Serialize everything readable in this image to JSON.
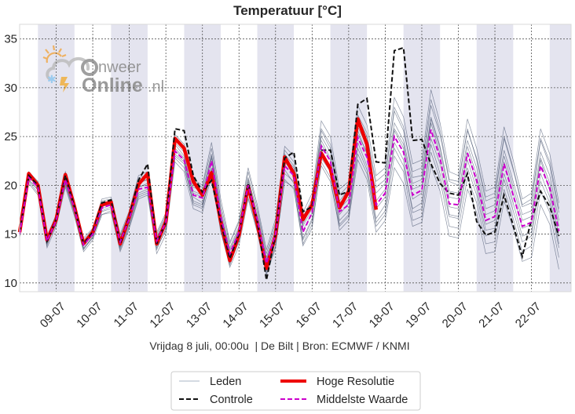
{
  "chart_data": {
    "type": "line",
    "title": "Temperatuur [°C]",
    "subtitle": "Vrijdag 8 juli, 00:00u  | De Bilt | Bron: ECMWF / KNMI",
    "xlabel": "",
    "ylabel": "",
    "ylim": [
      9.1,
      36.5
    ],
    "yticks": [
      10,
      15,
      20,
      25,
      30,
      35
    ],
    "ytick_labels": [
      "10",
      "15",
      "20",
      "25",
      "30",
      "35"
    ],
    "x_unit": "hours since 08-07 00:00",
    "xlim": [
      0,
      362
    ],
    "xticks": [
      24,
      48,
      72,
      96,
      120,
      144,
      168,
      192,
      216,
      240,
      264,
      288,
      312,
      336
    ],
    "xtick_labels": [
      "09-07",
      "10-07",
      "11-07",
      "12-07",
      "13-07",
      "14-07",
      "15-07",
      "16-07",
      "17-07",
      "18-07",
      "19-07",
      "20-07",
      "21-07",
      "22-07"
    ],
    "night_bands": [
      [
        12,
        36
      ],
      [
        60,
        84
      ],
      [
        108,
        132
      ],
      [
        156,
        180
      ],
      [
        204,
        228
      ],
      [
        252,
        276
      ],
      [
        300,
        324
      ],
      [
        348,
        362
      ]
    ],
    "grid": true,
    "legend": {
      "placement": "bottom-center",
      "entries": [
        {
          "label": "Leden",
          "style": "thin-gray"
        },
        {
          "label": "Hoge Resolutie",
          "style": "thick-red"
        },
        {
          "label": "Controle",
          "style": "dashed-black"
        },
        {
          "label": "Middelste Waarde",
          "style": "dashed-magenta"
        }
      ]
    },
    "colors": {
      "members": "#2b3a5a",
      "hires": "#ee0000",
      "control": "#111111",
      "median": "#cc00cc",
      "band": "#e4e4ef",
      "grid": "#555555"
    },
    "time_step_hours": 6,
    "series": [
      {
        "name": "Hoge Resolutie",
        "values": [
          15.2,
          21.2,
          20.0,
          14.4,
          16.5,
          21.1,
          17.8,
          14.0,
          15.2,
          18.0,
          18.3,
          14.0,
          16.8,
          20.1,
          21.2,
          14.0,
          16.3,
          24.8,
          23.8,
          20.4,
          19.0,
          21.3,
          16.3,
          12.3,
          14.9,
          19.9,
          16.1,
          11.5,
          14.9,
          22.9,
          21.2,
          16.5,
          18.0,
          23.3,
          21.7,
          17.7,
          19.4,
          26.8,
          24.2,
          17.5
        ]
      },
      {
        "name": "Controle",
        "values": [
          15.2,
          21.0,
          20.0,
          14.3,
          16.5,
          21.0,
          17.8,
          14.0,
          15.2,
          18.2,
          18.5,
          14.0,
          16.8,
          20.5,
          22.2,
          14.0,
          16.3,
          25.8,
          25.6,
          21.0,
          19.3,
          20.5,
          16.3,
          12.5,
          15.0,
          20.2,
          16.3,
          10.3,
          15.0,
          22.8,
          23.4,
          17.3,
          17.8,
          23.6,
          23.6,
          19.0,
          19.4,
          28.3,
          28.9,
          22.4,
          22.3,
          33.8,
          34.1,
          24.6,
          24.7,
          22.2,
          20.2,
          19.2,
          19.0,
          21.2,
          16.3,
          14.9,
          15.2,
          19.0,
          15.9,
          12.7,
          16.5,
          19.4,
          17.8,
          14.8
        ]
      },
      {
        "name": "Middelste Waarde",
        "values": [
          15.0,
          20.8,
          19.8,
          14.3,
          16.4,
          20.6,
          17.6,
          13.9,
          15.0,
          17.7,
          18.0,
          14.2,
          16.6,
          19.6,
          19.8,
          14.3,
          16.2,
          23.5,
          22.6,
          19.0,
          18.7,
          22.5,
          16.8,
          13.0,
          15.2,
          20.0,
          16.5,
          12.0,
          15.0,
          22.0,
          21.0,
          15.2,
          17.2,
          24.0,
          22.5,
          17.3,
          18.0,
          24.9,
          22.9,
          18.0,
          19.2,
          25.0,
          23.4,
          19.0,
          19.5,
          25.7,
          22.8,
          18.1,
          18.0,
          23.3,
          20.5,
          16.4,
          16.8,
          22.2,
          19.0,
          15.8,
          16.2,
          22.0,
          19.7,
          15.3
        ]
      }
    ],
    "members": [
      [
        14.8,
        20.6,
        19.5,
        14.0,
        16.0,
        20.2,
        17.2,
        13.5,
        14.6,
        17.4,
        17.8,
        13.6,
        16.0,
        19.0,
        19.4,
        13.4,
        15.6,
        23.0,
        22.2,
        18.0,
        17.6,
        21.8,
        15.8,
        12.4,
        14.6,
        19.2,
        16.0,
        11.4,
        14.2,
        21.2,
        20.4,
        14.6,
        16.6,
        23.6,
        22.0,
        16.4,
        17.4,
        24.4,
        22.0,
        16.6,
        18.0,
        23.8,
        22.0,
        17.6,
        18.2,
        24.2,
        21.2,
        16.8,
        16.6,
        21.8,
        19.0,
        14.8,
        15.4,
        20.6,
        17.4,
        14.2,
        14.8,
        20.4,
        18.2,
        13.6
      ],
      [
        15.4,
        21.2,
        20.2,
        14.6,
        16.8,
        21.0,
        18.0,
        14.2,
        15.4,
        18.2,
        18.4,
        14.6,
        17.0,
        20.4,
        20.6,
        14.8,
        16.8,
        24.4,
        23.4,
        19.8,
        19.4,
        23.2,
        17.6,
        13.6,
        15.8,
        20.8,
        17.2,
        12.6,
        15.8,
        22.8,
        21.8,
        16.0,
        18.0,
        25.0,
        23.4,
        18.2,
        19.0,
        26.0,
        24.0,
        19.2,
        20.2,
        26.4,
        24.6,
        20.2,
        20.6,
        27.0,
        24.0,
        19.4,
        19.2,
        24.6,
        21.8,
        17.6,
        18.0,
        23.6,
        20.4,
        17.0,
        17.4,
        23.4,
        21.0,
        16.4
      ],
      [
        14.6,
        20.2,
        19.0,
        13.6,
        15.8,
        19.8,
        16.8,
        13.2,
        14.4,
        17.0,
        17.2,
        13.2,
        15.6,
        18.6,
        19.0,
        13.0,
        15.0,
        22.4,
        21.4,
        17.6,
        17.2,
        21.0,
        15.4,
        11.6,
        13.8,
        18.6,
        15.2,
        10.8,
        13.6,
        20.6,
        19.6,
        13.8,
        15.6,
        22.4,
        20.8,
        15.4,
        16.4,
        22.6,
        20.6,
        15.2,
        16.4,
        21.8,
        20.2,
        15.8,
        16.2,
        22.0,
        19.4,
        14.8,
        14.6,
        19.6,
        17.2,
        13.0,
        13.2,
        18.4,
        15.6,
        12.2,
        12.6,
        18.0,
        16.0,
        11.4
      ],
      [
        15.6,
        21.4,
        20.4,
        14.8,
        17.0,
        21.4,
        18.4,
        14.6,
        15.6,
        18.6,
        18.8,
        15.0,
        17.4,
        21.0,
        21.4,
        15.2,
        17.2,
        25.2,
        24.2,
        20.6,
        20.0,
        24.4,
        18.6,
        14.2,
        16.4,
        21.8,
        18.0,
        13.4,
        16.6,
        24.0,
        23.0,
        17.2,
        19.2,
        26.6,
        25.0,
        19.6,
        20.4,
        28.2,
        26.2,
        21.0,
        21.8,
        29.0,
        27.0,
        22.2,
        22.6,
        29.8,
        26.4,
        21.4,
        21.0,
        26.8,
        23.8,
        19.4,
        19.8,
        26.0,
        22.6,
        18.6,
        19.2,
        25.8,
        23.2,
        18.2
      ],
      [
        15.0,
        20.9,
        19.8,
        14.2,
        16.2,
        20.5,
        17.5,
        13.8,
        14.9,
        17.6,
        18.0,
        13.8,
        16.4,
        19.8,
        20.2,
        14.0,
        16.0,
        23.8,
        22.8,
        18.8,
        18.2,
        22.4,
        16.4,
        12.8,
        15.0,
        20.0,
        16.4,
        11.8,
        15.0,
        22.4,
        21.2,
        15.4,
        17.2,
        24.6,
        22.8,
        17.0,
        18.2,
        25.6,
        23.2,
        17.6,
        18.8,
        25.6,
        23.8,
        18.6,
        19.2,
        26.4,
        23.2,
        17.8,
        17.6,
        23.4,
        20.2,
        16.0,
        16.4,
        22.4,
        19.2,
        15.6,
        16.0,
        22.6,
        19.4,
        14.8
      ],
      [
        14.9,
        20.4,
        19.2,
        13.8,
        16.4,
        20.0,
        17.0,
        13.4,
        14.8,
        17.0,
        17.4,
        13.4,
        15.8,
        18.8,
        19.2,
        13.6,
        15.4,
        22.8,
        21.8,
        18.2,
        17.8,
        21.6,
        15.6,
        12.0,
        14.2,
        19.6,
        15.8,
        11.2,
        14.4,
        21.6,
        20.2,
        14.4,
        16.4,
        22.8,
        21.4,
        16.0,
        17.0,
        23.8,
        21.6,
        16.2,
        17.4,
        24.4,
        22.6,
        17.2,
        17.6,
        24.8,
        22.2,
        17.0,
        16.8,
        22.6,
        19.6,
        15.4,
        15.6,
        21.2,
        18.2,
        14.8,
        15.2,
        21.2,
        18.8,
        14.0
      ],
      [
        15.3,
        21.1,
        20.1,
        14.5,
        16.6,
        20.8,
        17.8,
        14.0,
        15.1,
        17.9,
        18.2,
        14.4,
        16.8,
        20.2,
        20.6,
        14.6,
        16.6,
        24.2,
        23.0,
        19.4,
        19.0,
        23.0,
        17.2,
        13.4,
        15.6,
        20.6,
        16.8,
        12.2,
        15.4,
        23.2,
        22.0,
        16.2,
        17.8,
        25.6,
        23.8,
        18.4,
        19.6,
        27.2,
        25.4,
        19.8,
        20.6,
        28.0,
        26.0,
        20.8,
        21.0,
        28.2,
        25.2,
        20.4,
        20.0,
        25.8,
        22.6,
        18.4,
        18.8,
        24.8,
        21.6,
        17.8,
        18.2,
        24.6,
        22.0,
        17.2
      ],
      [
        14.7,
        20.5,
        19.6,
        14.1,
        16.1,
        20.3,
        17.3,
        13.6,
        14.7,
        17.3,
        17.6,
        13.7,
        16.2,
        19.2,
        19.6,
        13.8,
        15.8,
        23.2,
        22.4,
        18.4,
        18.0,
        21.2,
        15.2,
        11.8,
        14.4,
        18.8,
        15.4,
        11.0,
        13.8,
        20.4,
        19.8,
        14.0,
        16.0,
        22.0,
        20.4,
        15.8,
        16.8,
        23.2,
        21.2,
        15.8,
        17.0,
        23.0,
        21.4,
        16.4,
        16.8,
        23.4,
        20.6,
        15.8,
        15.6,
        20.8,
        18.2,
        14.0,
        14.2,
        19.6,
        16.6,
        13.2,
        13.8,
        19.4,
        17.2,
        12.6
      ],
      [
        15.1,
        21.0,
        19.9,
        14.3,
        16.5,
        20.7,
        17.7,
        13.9,
        15.0,
        17.8,
        18.1,
        14.0,
        16.6,
        19.9,
        20.0,
        14.4,
        16.4,
        23.6,
        22.6,
        19.2,
        18.8,
        22.8,
        17.0,
        13.2,
        15.4,
        20.4,
        16.6,
        12.4,
        15.2,
        22.6,
        21.4,
        15.8,
        17.6,
        24.2,
        22.6,
        17.6,
        18.6,
        25.2,
        23.4,
        18.4,
        19.6,
        25.8,
        24.2,
        19.6,
        20.0,
        26.8,
        23.8,
        18.8,
        18.6,
        24.0,
        21.0,
        17.0,
        17.4,
        23.0,
        19.8,
        16.4,
        16.8,
        22.8,
        20.2,
        15.8
      ],
      [
        15.5,
        21.3,
        20.3,
        14.7,
        16.9,
        21.2,
        18.2,
        14.4,
        15.5,
        18.4,
        18.6,
        14.8,
        17.2,
        20.8,
        21.0,
        15.0,
        17.0,
        24.8,
        23.8,
        20.2,
        19.8,
        23.8,
        18.0,
        14.0,
        16.2,
        21.4,
        17.6,
        13.0,
        16.2,
        23.6,
        22.4,
        16.8,
        18.6,
        25.8,
        24.2,
        19.0,
        20.0,
        27.0,
        25.0,
        20.4,
        21.2,
        27.6,
        25.6,
        21.4,
        21.8,
        28.8,
        25.6,
        20.6,
        20.4,
        25.6,
        22.8,
        18.8,
        19.2,
        25.0,
        21.8,
        18.0,
        18.6,
        24.8,
        22.4,
        17.6
      ]
    ]
  }
}
